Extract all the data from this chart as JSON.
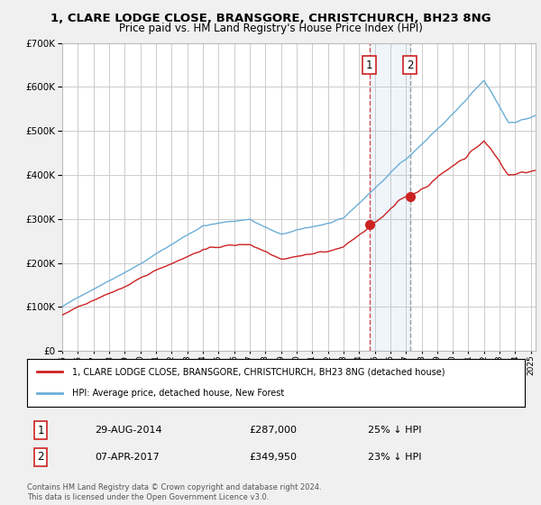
{
  "title": "1, CLARE LODGE CLOSE, BRANSGORE, CHRISTCHURCH, BH23 8NG",
  "subtitle": "Price paid vs. HM Land Registry's House Price Index (HPI)",
  "ylim": [
    0,
    700000
  ],
  "yticks": [
    0,
    100000,
    200000,
    300000,
    400000,
    500000,
    600000,
    700000
  ],
  "hpi_color": "#6baed6",
  "price_color": "#cc2222",
  "legend_label_price": "1, CLARE LODGE CLOSE, BRANSGORE, CHRISTCHURCH, BH23 8NG (detached house)",
  "legend_label_hpi": "HPI: Average price, detached house, New Forest",
  "sale1_date": "29-AUG-2014",
  "sale1_price": "£287,000",
  "sale1_hpi": "25% ↓ HPI",
  "sale2_date": "07-APR-2017",
  "sale2_price": "£349,950",
  "sale2_hpi": "23% ↓ HPI",
  "footer": "Contains HM Land Registry data © Crown copyright and database right 2024.\nThis data is licensed under the Open Government Licence v3.0.",
  "background_color": "#f0f0f0",
  "plot_bg_color": "#ffffff",
  "grid_color": "#cccccc",
  "sale1_year": 2014.66,
  "sale2_year": 2017.25
}
